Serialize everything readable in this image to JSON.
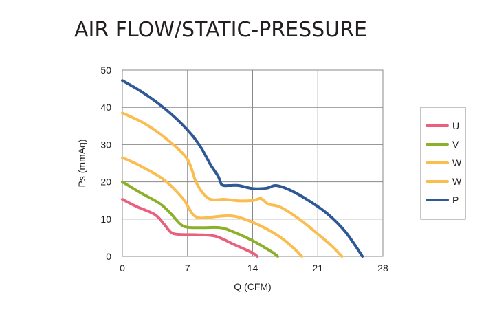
{
  "chart_data": {
    "type": "line",
    "title": "AIR FLOW/STATIC-PRESSURE",
    "xlabel": "Q (CFM)",
    "ylabel": "Ps (mmAq)",
    "xlim": [
      0,
      28
    ],
    "ylim": [
      0,
      50
    ],
    "x_ticks": [
      "0",
      "7",
      "14",
      "21",
      "28"
    ],
    "y_ticks": [
      "0",
      "10",
      "20",
      "30",
      "40",
      "50"
    ],
    "grid": true,
    "legend_position": "right",
    "series": [
      {
        "name": "U",
        "color": "#e8607e",
        "x": [
          0,
          1.5,
          3.5,
          4.5,
          5.2,
          6.0,
          8.0,
          10.0,
          12.0,
          14.0,
          14.5
        ],
        "y": [
          15.3,
          13.4,
          11.2,
          8.6,
          6.5,
          5.9,
          5.8,
          5.4,
          3.2,
          0.9,
          0
        ]
      },
      {
        "name": "V",
        "color": "#8db02b",
        "x": [
          0,
          2.0,
          4.0,
          5.2,
          6.2,
          7.0,
          8.5,
          10.5,
          12.0,
          14.0,
          16.0,
          16.7
        ],
        "y": [
          20.0,
          17.0,
          14.2,
          11.5,
          8.7,
          7.8,
          7.7,
          7.7,
          6.5,
          4.2,
          1.3,
          0
        ]
      },
      {
        "name": "W",
        "color": "#fbbc50",
        "x": [
          0,
          2.0,
          4.5,
          6.5,
          7.5,
          8.3,
          9.5,
          11.5,
          13.0,
          15.0,
          17.0,
          18.5,
          19.3
        ],
        "y": [
          26.5,
          24.2,
          20.5,
          15.5,
          11.5,
          10.3,
          10.5,
          10.9,
          10.1,
          8.0,
          5.1,
          2.0,
          0
        ]
      },
      {
        "name": "W",
        "color": "#fbbc50",
        "x": [
          0,
          2.5,
          5.0,
          7.0,
          8.0,
          9.3,
          11.0,
          12.5,
          14.0,
          14.9,
          15.7,
          17.0,
          19.0,
          21.0,
          22.5,
          23.6
        ],
        "y": [
          38.5,
          35.5,
          31.0,
          26.0,
          19.5,
          15.5,
          15.3,
          14.9,
          15.0,
          15.5,
          14.0,
          13.2,
          10.0,
          6.0,
          2.8,
          0
        ]
      },
      {
        "name": "P",
        "color": "#2e5896",
        "x": [
          0,
          2.0,
          4.0,
          6.0,
          7.5,
          8.5,
          9.5,
          10.3,
          10.7,
          11.5,
          12.5,
          14.0,
          15.5,
          16.5,
          18.0,
          20.0,
          22.0,
          24.0,
          25.8
        ],
        "y": [
          47.2,
          44.3,
          40.8,
          36.5,
          32.5,
          29.0,
          24.5,
          21.5,
          19.2,
          19.0,
          19.0,
          18.2,
          18.3,
          19.0,
          17.8,
          15.0,
          11.5,
          6.5,
          0
        ]
      }
    ]
  }
}
